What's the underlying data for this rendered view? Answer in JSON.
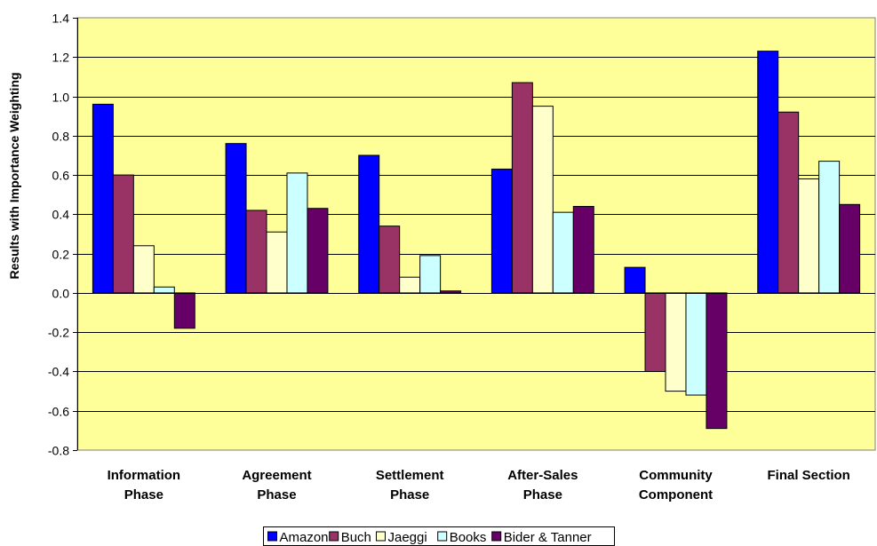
{
  "chart_data": {
    "type": "bar",
    "ylabel": "Results with Importance Weighting",
    "ylim": [
      -0.8,
      1.4
    ],
    "yticks": [
      "1.4",
      "1.2",
      "1.0",
      "0.8",
      "0.6",
      "0.4",
      "0.2",
      "0.0",
      "-0.2",
      "-0.4",
      "-0.6",
      "-0.8"
    ],
    "yticks_values": [
      1.4,
      1.2,
      1.0,
      0.8,
      0.6,
      0.4,
      0.2,
      0.0,
      -0.2,
      -0.4,
      -0.6,
      -0.8
    ],
    "grid": true,
    "legend_position": "bottom",
    "categories": [
      [
        "Information",
        "Phase"
      ],
      [
        "Agreement",
        "Phase"
      ],
      [
        "Settlement",
        "Phase"
      ],
      [
        "After-Sales",
        "Phase"
      ],
      [
        "Community",
        "Component"
      ],
      [
        "Final Section"
      ]
    ],
    "series": [
      {
        "name": "Amazon",
        "color": "#0000ff",
        "values": [
          0.96,
          0.76,
          0.7,
          0.63,
          0.13,
          1.23
        ]
      },
      {
        "name": "Buch",
        "color": "#993366",
        "values": [
          0.6,
          0.42,
          0.34,
          1.07,
          -0.4,
          0.92
        ]
      },
      {
        "name": "Jaeggi",
        "color": "#ffffcc",
        "values": [
          0.24,
          0.31,
          0.08,
          0.95,
          -0.5,
          0.58
        ]
      },
      {
        "name": "Books",
        "color": "#ccffff",
        "values": [
          0.03,
          0.61,
          0.19,
          0.41,
          -0.52,
          0.67
        ]
      },
      {
        "name": "Bider & Tanner",
        "color": "#660066",
        "values": [
          -0.18,
          0.43,
          0.01,
          0.44,
          -0.69,
          0.45
        ]
      }
    ],
    "plot_background": "#ffff99"
  }
}
